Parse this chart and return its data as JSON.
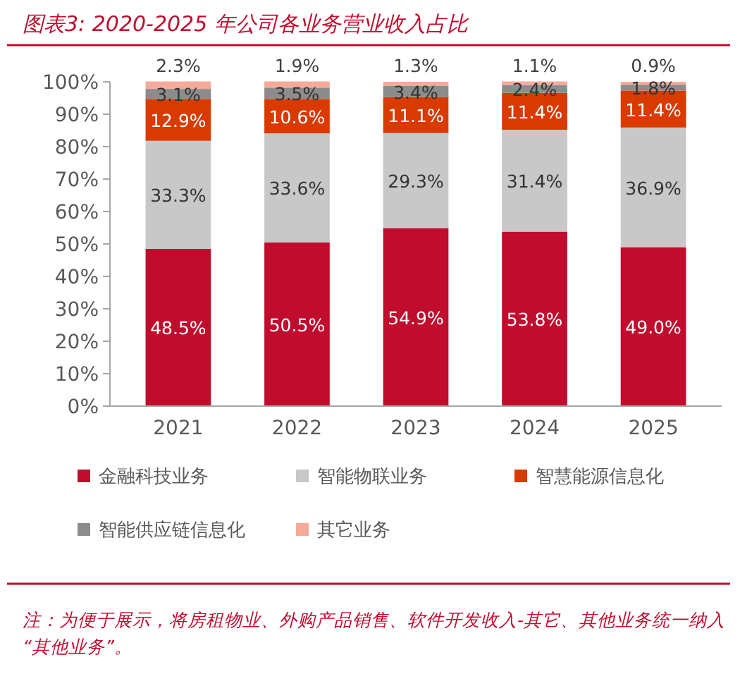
{
  "chart_data": {
    "type": "bar",
    "title": "图表3:  2020-2025 年公司各业务营业收入占比",
    "categories": [
      "2021",
      "2022",
      "2023",
      "2024",
      "2025"
    ],
    "series": [
      {
        "name": "金融科技业务",
        "color": "#c00d2e",
        "values": [
          48.5,
          50.5,
          54.9,
          53.8,
          49.0
        ],
        "value_labels": [
          "48.5%",
          "50.5%",
          "54.9%",
          "53.8%",
          "49.0%"
        ]
      },
      {
        "name": "智能物联业务",
        "color": "#c8c8c8",
        "values": [
          33.3,
          33.6,
          29.3,
          31.4,
          36.9
        ],
        "value_labels": [
          "33.3%",
          "33.6%",
          "29.3%",
          "31.4%",
          "36.9%"
        ]
      },
      {
        "name": "智慧能源信息化",
        "color": "#d93a00",
        "values": [
          12.9,
          10.6,
          11.1,
          11.4,
          11.4
        ],
        "value_labels": [
          "12.9%",
          "10.6%",
          "11.1%",
          "11.4%",
          "11.4%"
        ]
      },
      {
        "name": "智能供应链信息化",
        "color": "#8c8c8c",
        "values": [
          3.1,
          3.5,
          3.4,
          2.4,
          1.8
        ],
        "value_labels": [
          "3.1%",
          "3.5%",
          "3.4%",
          "2.4%",
          "1.8%"
        ]
      },
      {
        "name": "其它业务",
        "color": "#f7a99a",
        "values": [
          2.3,
          1.9,
          1.3,
          1.1,
          0.9
        ],
        "value_labels": [
          "2.3%",
          "1.9%",
          "1.3%",
          "1.1%",
          "0.9%"
        ]
      }
    ],
    "stacked": true,
    "legend": "bottom",
    "grid": false,
    "ylim": [
      0,
      100
    ],
    "yticks": [
      {
        "value": 0,
        "label": "0%"
      },
      {
        "value": 10,
        "label": "10%"
      },
      {
        "value": 20,
        "label": "20%"
      },
      {
        "value": 30,
        "label": "30%"
      },
      {
        "value": 40,
        "label": "40%"
      },
      {
        "value": 50,
        "label": "50%"
      },
      {
        "value": 60,
        "label": "60%"
      },
      {
        "value": 70,
        "label": "70%"
      },
      {
        "value": 80,
        "label": "80%"
      },
      {
        "value": 90,
        "label": "90%"
      },
      {
        "value": 100,
        "label": "100%"
      }
    ],
    "annotations": [
      "注：为便于展示，将房租物业、外购产品销售、软件开发收入-其它、其他业务统一纳入“其他业务”。"
    ]
  }
}
